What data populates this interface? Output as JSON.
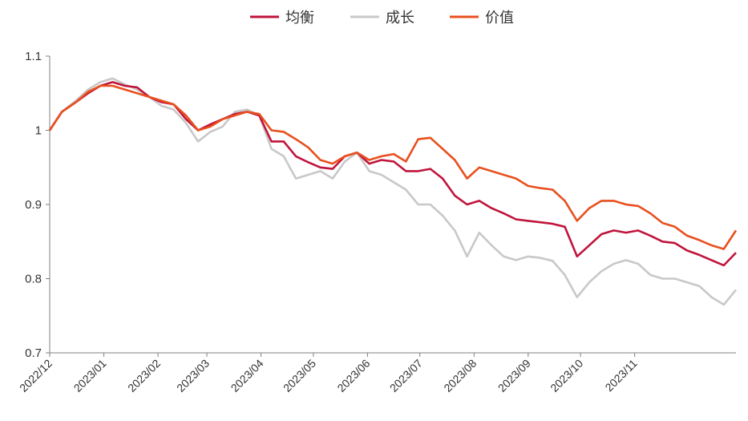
{
  "chart_data": {
    "type": "line",
    "title": "",
    "xlabel": "",
    "ylabel": "",
    "ylim": [
      0.7,
      1.1
    ],
    "y_ticks": [
      "0.7",
      "0.8",
      "0.9",
      "1",
      "1.1"
    ],
    "x_tick_labels": [
      "2022/12",
      "2023/01",
      "2023/02",
      "2023/03",
      "2023/04",
      "2023/05",
      "2023/06",
      "2023/07",
      "2023/08",
      "2023/09",
      "2023/10",
      "2023/11"
    ],
    "grid": false,
    "legend_position": "top-center",
    "x_dates": [
      "2022-12-01",
      "2022-12-08",
      "2022-12-16",
      "2022-12-23",
      "2022-12-30",
      "2023-01-06",
      "2023-01-13",
      "2023-01-20",
      "2023-01-27",
      "2023-02-03",
      "2023-02-10",
      "2023-02-17",
      "2023-02-24",
      "2023-03-03",
      "2023-03-10",
      "2023-03-17",
      "2023-03-24",
      "2023-03-31",
      "2023-04-07",
      "2023-04-14",
      "2023-04-21",
      "2023-04-28",
      "2023-05-05",
      "2023-05-12",
      "2023-05-19",
      "2023-05-26",
      "2023-06-02",
      "2023-06-09",
      "2023-06-16",
      "2023-06-23",
      "2023-06-30",
      "2023-07-07",
      "2023-07-14",
      "2023-07-21",
      "2023-07-28",
      "2023-08-04",
      "2023-08-11",
      "2023-08-18",
      "2023-08-25",
      "2023-09-01",
      "2023-09-08",
      "2023-09-15",
      "2023-09-22",
      "2023-09-29",
      "2023-10-06",
      "2023-10-13",
      "2023-10-20",
      "2023-10-27",
      "2023-11-03",
      "2023-11-10",
      "2023-11-17",
      "2023-11-24",
      "2023-12-01",
      "2023-12-08",
      "2023-12-15",
      "2023-12-22",
      "2023-12-29"
    ],
    "series": [
      {
        "name": "均衡",
        "color": "#C0143C",
        "values": [
          1.0,
          1.025,
          1.038,
          1.05,
          1.06,
          1.065,
          1.06,
          1.058,
          1.045,
          1.038,
          1.035,
          1.015,
          1.0,
          1.008,
          1.015,
          1.022,
          1.025,
          1.02,
          0.985,
          0.985,
          0.965,
          0.957,
          0.95,
          0.948,
          0.965,
          0.97,
          0.955,
          0.96,
          0.958,
          0.945,
          0.945,
          0.948,
          0.935,
          0.912,
          0.9,
          0.905,
          0.895,
          0.888,
          0.88,
          0.878,
          0.876,
          0.874,
          0.87,
          0.83,
          0.845,
          0.86,
          0.865,
          0.862,
          0.865,
          0.858,
          0.85,
          0.848,
          0.838,
          0.832,
          0.825,
          0.818,
          0.835
        ]
      },
      {
        "name": "成长",
        "color": "#C8C8C8",
        "values": [
          1.0,
          1.025,
          1.04,
          1.055,
          1.065,
          1.07,
          1.062,
          1.055,
          1.045,
          1.033,
          1.028,
          1.01,
          0.985,
          0.998,
          1.005,
          1.025,
          1.028,
          1.02,
          0.975,
          0.965,
          0.935,
          0.94,
          0.945,
          0.935,
          0.958,
          0.97,
          0.945,
          0.94,
          0.93,
          0.92,
          0.9,
          0.9,
          0.885,
          0.865,
          0.83,
          0.862,
          0.845,
          0.83,
          0.825,
          0.83,
          0.828,
          0.824,
          0.805,
          0.775,
          0.795,
          0.81,
          0.82,
          0.825,
          0.82,
          0.805,
          0.8,
          0.8,
          0.795,
          0.79,
          0.775,
          0.765,
          0.785
        ]
      },
      {
        "name": "价值",
        "color": "#E8501E",
        "values": [
          1.0,
          1.025,
          1.038,
          1.052,
          1.06,
          1.06,
          1.055,
          1.05,
          1.045,
          1.04,
          1.035,
          1.02,
          1.0,
          1.005,
          1.015,
          1.02,
          1.025,
          1.022,
          1.0,
          0.998,
          0.988,
          0.977,
          0.96,
          0.955,
          0.965,
          0.97,
          0.96,
          0.965,
          0.968,
          0.958,
          0.988,
          0.99,
          0.975,
          0.96,
          0.935,
          0.95,
          0.945,
          0.94,
          0.935,
          0.925,
          0.922,
          0.92,
          0.905,
          0.878,
          0.895,
          0.905,
          0.905,
          0.9,
          0.898,
          0.888,
          0.875,
          0.87,
          0.858,
          0.852,
          0.845,
          0.84,
          0.865
        ]
      }
    ]
  }
}
